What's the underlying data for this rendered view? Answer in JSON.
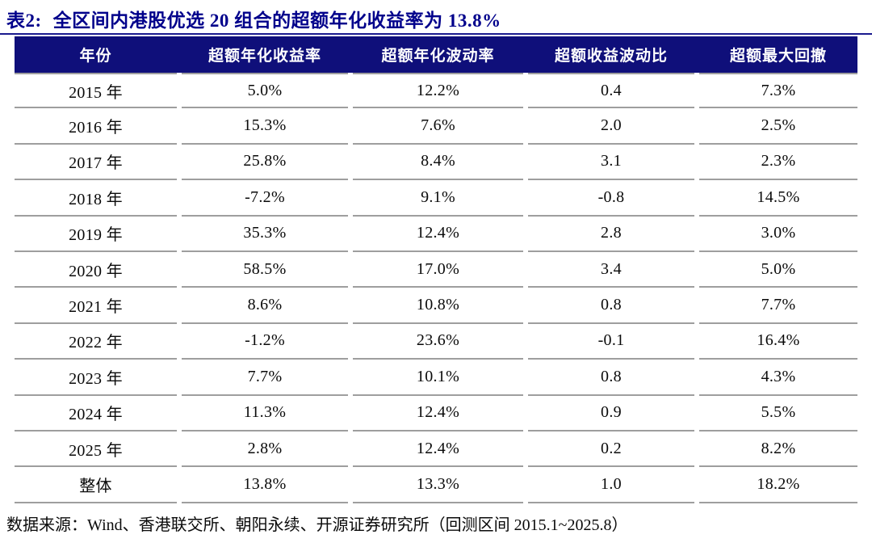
{
  "colors": {
    "header_navy": "#0F0F7A",
    "title_navy": "#00008B",
    "separator_gray": "#9e9e9e",
    "body_text": "#0a0a0a"
  },
  "header": {
    "label": "表2:",
    "title": "全区间内港股优选 20 组合的超额年化收益率为 13.8%"
  },
  "table": {
    "columns": [
      "年份",
      "超额年化收益率",
      "超额年化波动率",
      "超额收益波动比",
      "超额最大回撤"
    ],
    "rows": [
      [
        "2015 年",
        "5.0%",
        "12.2%",
        "0.4",
        "7.3%"
      ],
      [
        "2016 年",
        "15.3%",
        "7.6%",
        "2.0",
        "2.5%"
      ],
      [
        "2017 年",
        "25.8%",
        "8.4%",
        "3.1",
        "2.3%"
      ],
      [
        "2018 年",
        "-7.2%",
        "9.1%",
        "-0.8",
        "14.5%"
      ],
      [
        "2019 年",
        "35.3%",
        "12.4%",
        "2.8",
        "3.0%"
      ],
      [
        "2020 年",
        "58.5%",
        "17.0%",
        "3.4",
        "5.0%"
      ],
      [
        "2021 年",
        "8.6%",
        "10.8%",
        "0.8",
        "7.7%"
      ],
      [
        "2022 年",
        "-1.2%",
        "23.6%",
        "-0.1",
        "16.4%"
      ],
      [
        "2023 年",
        "7.7%",
        "10.1%",
        "0.8",
        "4.3%"
      ],
      [
        "2024 年",
        "11.3%",
        "12.4%",
        "0.9",
        "5.5%"
      ],
      [
        "2025 年",
        "2.8%",
        "12.4%",
        "0.2",
        "8.2%"
      ],
      [
        "整体",
        "13.8%",
        "13.3%",
        "1.0",
        "18.2%"
      ]
    ]
  },
  "chart_data": {
    "type": "table",
    "title": "表2: 全区间内港股优选 20 组合的超额年化收益率为 13.8%",
    "columns": [
      "年份",
      "超额年化收益率",
      "超额年化波动率",
      "超额收益波动比",
      "超额最大回撤"
    ],
    "rows": [
      [
        "2015 年",
        "5.0%",
        "12.2%",
        "0.4",
        "7.3%"
      ],
      [
        "2016 年",
        "15.3%",
        "7.6%",
        "2.0",
        "2.5%"
      ],
      [
        "2017 年",
        "25.8%",
        "8.4%",
        "3.1",
        "2.3%"
      ],
      [
        "2018 年",
        "-7.2%",
        "9.1%",
        "-0.8",
        "14.5%"
      ],
      [
        "2019 年",
        "35.3%",
        "12.4%",
        "2.8",
        "3.0%"
      ],
      [
        "2020 年",
        "58.5%",
        "17.0%",
        "3.4",
        "5.0%"
      ],
      [
        "2021 年",
        "8.6%",
        "10.8%",
        "0.8",
        "7.7%"
      ],
      [
        "2022 年",
        "-1.2%",
        "23.6%",
        "-0.1",
        "16.4%"
      ],
      [
        "2023 年",
        "7.7%",
        "10.1%",
        "0.8",
        "4.3%"
      ],
      [
        "2024 年",
        "11.3%",
        "12.4%",
        "0.9",
        "5.5%"
      ],
      [
        "2025 年",
        "2.8%",
        "12.4%",
        "0.2",
        "8.2%"
      ],
      [
        "整体",
        "13.8%",
        "13.3%",
        "1.0",
        "18.2%"
      ]
    ]
  },
  "footer": {
    "source": "数据来源：Wind、香港联交所、朝阳永续、开源证券研究所（回测区间 2015.1~2025.8）"
  }
}
